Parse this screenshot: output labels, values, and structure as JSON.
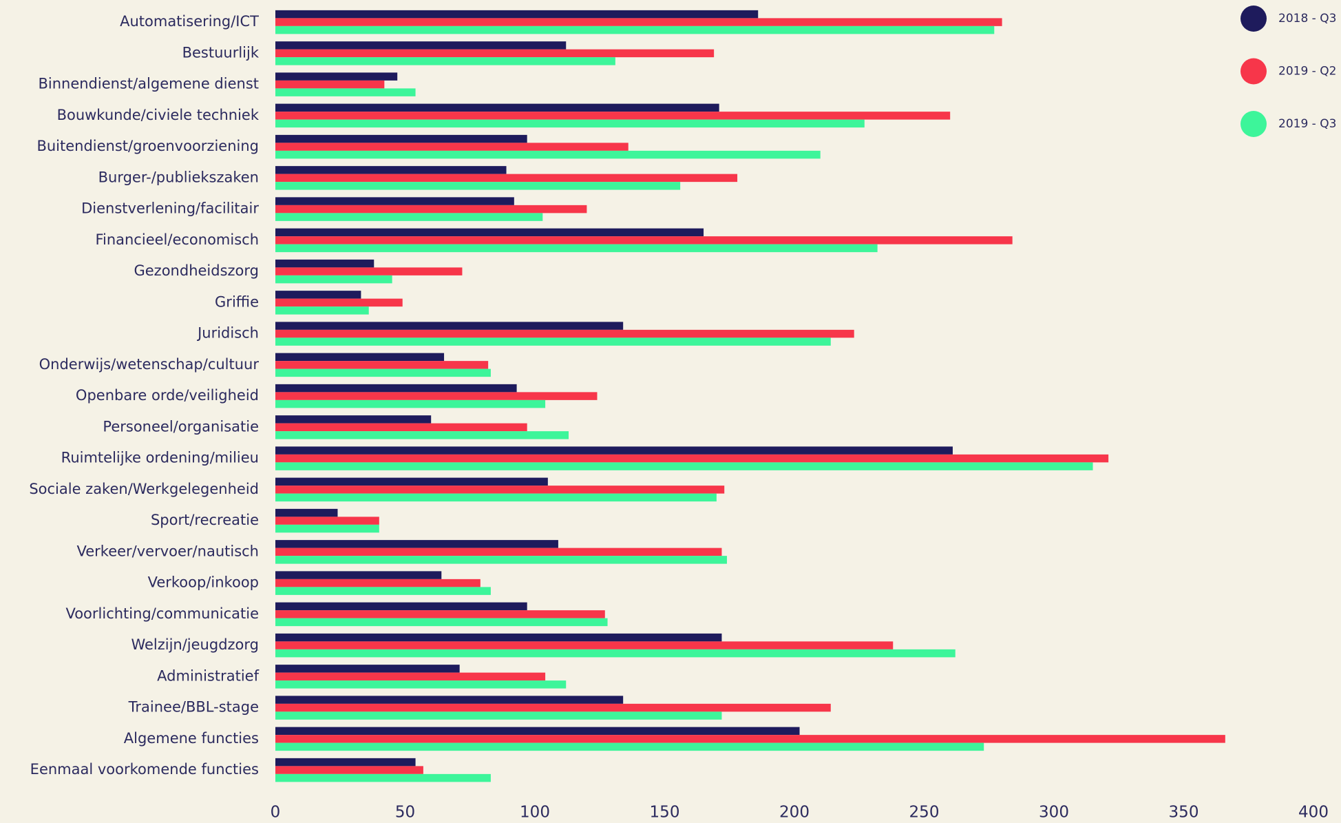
{
  "chart_data": {
    "type": "barh",
    "categories": [
      "Automatisering/ICT",
      "Bestuurlijk",
      "Binnendienst/algemene dienst",
      "Bouwkunde/civiele techniek",
      "Buitendienst/groenvoorziening",
      "Burger-/publiekszaken",
      "Dienstverlening/facilitair",
      "Financieel/economisch",
      "Gezondheidszorg",
      "Griffie",
      "Juridisch",
      "Onderwijs/wetenschap/cultuur",
      "Openbare orde/veiligheid",
      "Personeel/organisatie",
      "Ruimtelijke ordening/milieu",
      "Sociale zaken/Werkgelegenheid",
      "Sport/recreatie",
      "Verkeer/vervoer/nautisch",
      "Verkoop/inkoop",
      "Voorlichting/communicatie",
      "Welzijn/jeugdzorg",
      "Administratief",
      "Trainee/BBL-stage",
      "Algemene functies",
      "Eenmaal voorkomende functies"
    ],
    "series": [
      {
        "name": "2018 - Q3",
        "color": "#1e1b5c",
        "values": [
          186,
          112,
          47,
          171,
          97,
          89,
          92,
          165,
          38,
          33,
          134,
          65,
          93,
          60,
          261,
          105,
          24,
          109,
          64,
          97,
          172,
          71,
          134,
          202,
          54
        ]
      },
      {
        "name": "2019 - Q2",
        "color": "#f7364a",
        "values": [
          280,
          169,
          42,
          260,
          136,
          178,
          120,
          284,
          72,
          49,
          223,
          82,
          124,
          97,
          321,
          173,
          40,
          172,
          79,
          127,
          238,
          104,
          214,
          366,
          57
        ]
      },
      {
        "name": "2019 - Q3",
        "color": "#3df59a",
        "values": [
          277,
          131,
          54,
          227,
          210,
          156,
          103,
          232,
          45,
          36,
          214,
          83,
          104,
          113,
          315,
          170,
          40,
          174,
          83,
          128,
          262,
          112,
          172,
          273,
          83
        ]
      }
    ],
    "xlim": [
      0,
      400
    ],
    "xticks": [
      0,
      50,
      100,
      150,
      200,
      250,
      300,
      350,
      400
    ]
  }
}
